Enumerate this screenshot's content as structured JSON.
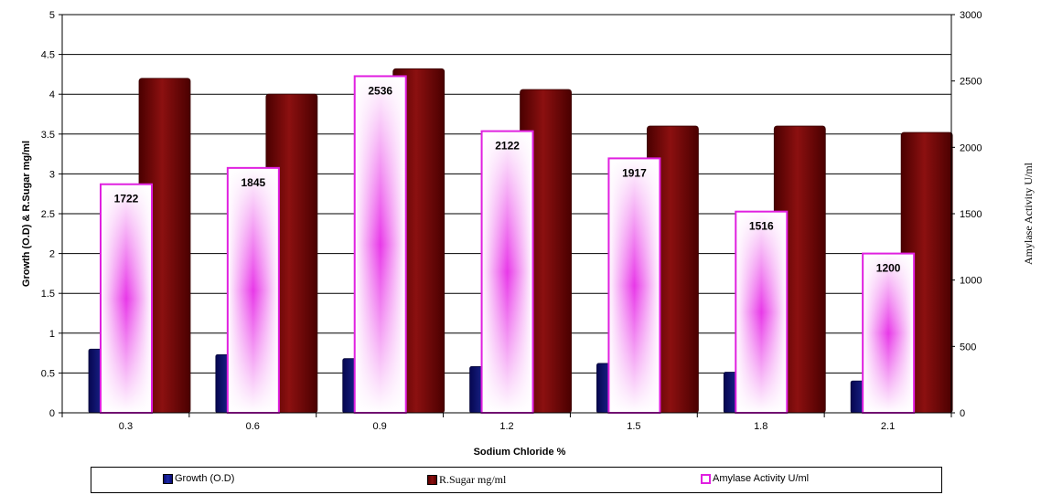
{
  "chart_data": {
    "type": "bar",
    "title": "",
    "xlabel": "Sodium Chloride %",
    "ylabel": "Growth (O.D) & R.Sugar mg/ml",
    "y2label": "Amylase Activity U/ml",
    "categories": [
      "0.3",
      "0.6",
      "0.9",
      "1.2",
      "1.5",
      "1.8",
      "2.1"
    ],
    "ylim": [
      0,
      5
    ],
    "y2lim": [
      0,
      3000
    ],
    "yticks": [
      "0",
      "0.5",
      "1",
      "1.5",
      "2",
      "2.5",
      "3",
      "3.5",
      "4",
      "4.5",
      "5"
    ],
    "y2ticks": [
      "0",
      "500",
      "1000",
      "1500",
      "2000",
      "2500",
      "3000"
    ],
    "grid": true,
    "legend_position": "bottom",
    "series": [
      {
        "name": "Growth (O.D)",
        "axis": "left",
        "color": "#10108a",
        "values": [
          0.8,
          0.73,
          0.68,
          0.58,
          0.62,
          0.51,
          0.4
        ]
      },
      {
        "name": "R.Sugar mg/ml",
        "axis": "left",
        "color": "#800000",
        "values": [
          4.2,
          4.0,
          4.32,
          4.06,
          3.6,
          3.6,
          3.52
        ]
      },
      {
        "name": "Amylase Activity U/ml",
        "axis": "right",
        "color": "#e020e0",
        "values": [
          1722,
          1845,
          2536,
          2122,
          1917,
          1516,
          1200
        ],
        "data_labels": [
          "1722",
          "1845",
          "2536",
          "2122",
          "1917",
          "1516",
          "1200"
        ]
      }
    ]
  }
}
